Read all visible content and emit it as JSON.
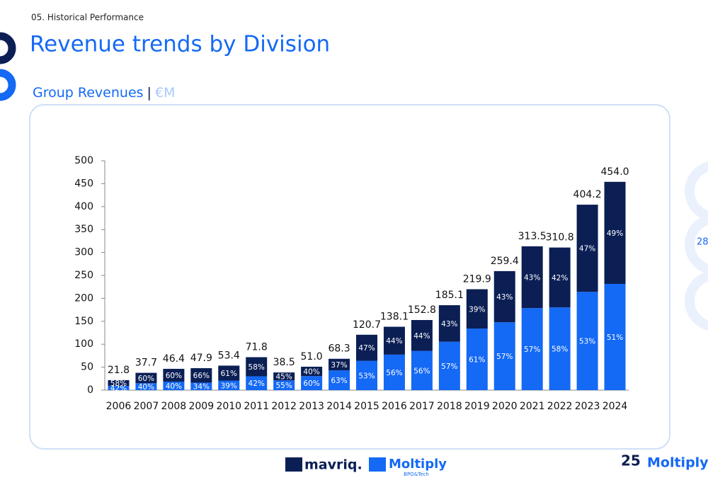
{
  "header": {
    "section": "05. Historical Performance",
    "title": "Revenue trends by Division",
    "subtitle": "Group Revenues",
    "separator": "|",
    "unit": "€M"
  },
  "page_number": "28",
  "footer": {
    "moltiply_tagline": "BPO&Tech",
    "badge_number": "25",
    "badge_brand": "Moltiply"
  },
  "chart_data": {
    "type": "stacked-percent-bar",
    "categories": [
      "2006",
      "2007",
      "2008",
      "2009",
      "2010",
      "2011",
      "2012",
      "2013",
      "2014",
      "2015",
      "2016",
      "2017",
      "2018",
      "2019",
      "2020",
      "2021",
      "2022",
      "2023",
      "2024"
    ],
    "totals": [
      21.8,
      37.7,
      46.4,
      47.9,
      53.4,
      71.8,
      38.5,
      51.0,
      68.3,
      120.7,
      138.1,
      152.8,
      185.1,
      219.9,
      259.4,
      313.5,
      310.8,
      404.2,
      454.0
    ],
    "totals_labels": [
      "21.8",
      "37.7",
      "46.4",
      "47.9",
      "53.4",
      "71.8",
      "38.5",
      "51.0",
      "68.3",
      "120.7",
      "138.1",
      "152.8",
      "185.1",
      "219.9",
      "259.4",
      "313.5",
      "310.8",
      "404.2",
      "454.0"
    ],
    "series": [
      {
        "name": "Moltiply",
        "color": "#1469f5",
        "values": [
          42,
          40,
          40,
          34,
          39,
          42,
          55,
          60,
          63,
          53,
          56,
          56,
          57,
          61,
          57,
          57,
          58,
          53,
          51
        ],
        "value_labels": [
          "42%",
          "40%",
          "40%",
          "34%",
          "39%",
          "42%",
          "55%",
          "60%",
          "63%",
          "53%",
          "56%",
          "56%",
          "57%",
          "61%",
          "57%",
          "57%",
          "58%",
          "53%",
          "51%"
        ]
      },
      {
        "name": "mavriq.",
        "color": "#0b1f55",
        "values": [
          58,
          60,
          60,
          66,
          61,
          58,
          45,
          40,
          37,
          47,
          44,
          44,
          43,
          39,
          43,
          43,
          42,
          47,
          49
        ],
        "value_labels": [
          "58%",
          "60%",
          "60%",
          "66%",
          "61%",
          "58%",
          "45%",
          "40%",
          "37%",
          "47%",
          "44%",
          "44%",
          "43%",
          "39%",
          "43%",
          "43%",
          "42%",
          "47%",
          "49%"
        ]
      }
    ],
    "ylim": [
      0,
      500
    ],
    "yticks": [
      0,
      50,
      100,
      150,
      200,
      250,
      300,
      350,
      400,
      450,
      500
    ]
  }
}
